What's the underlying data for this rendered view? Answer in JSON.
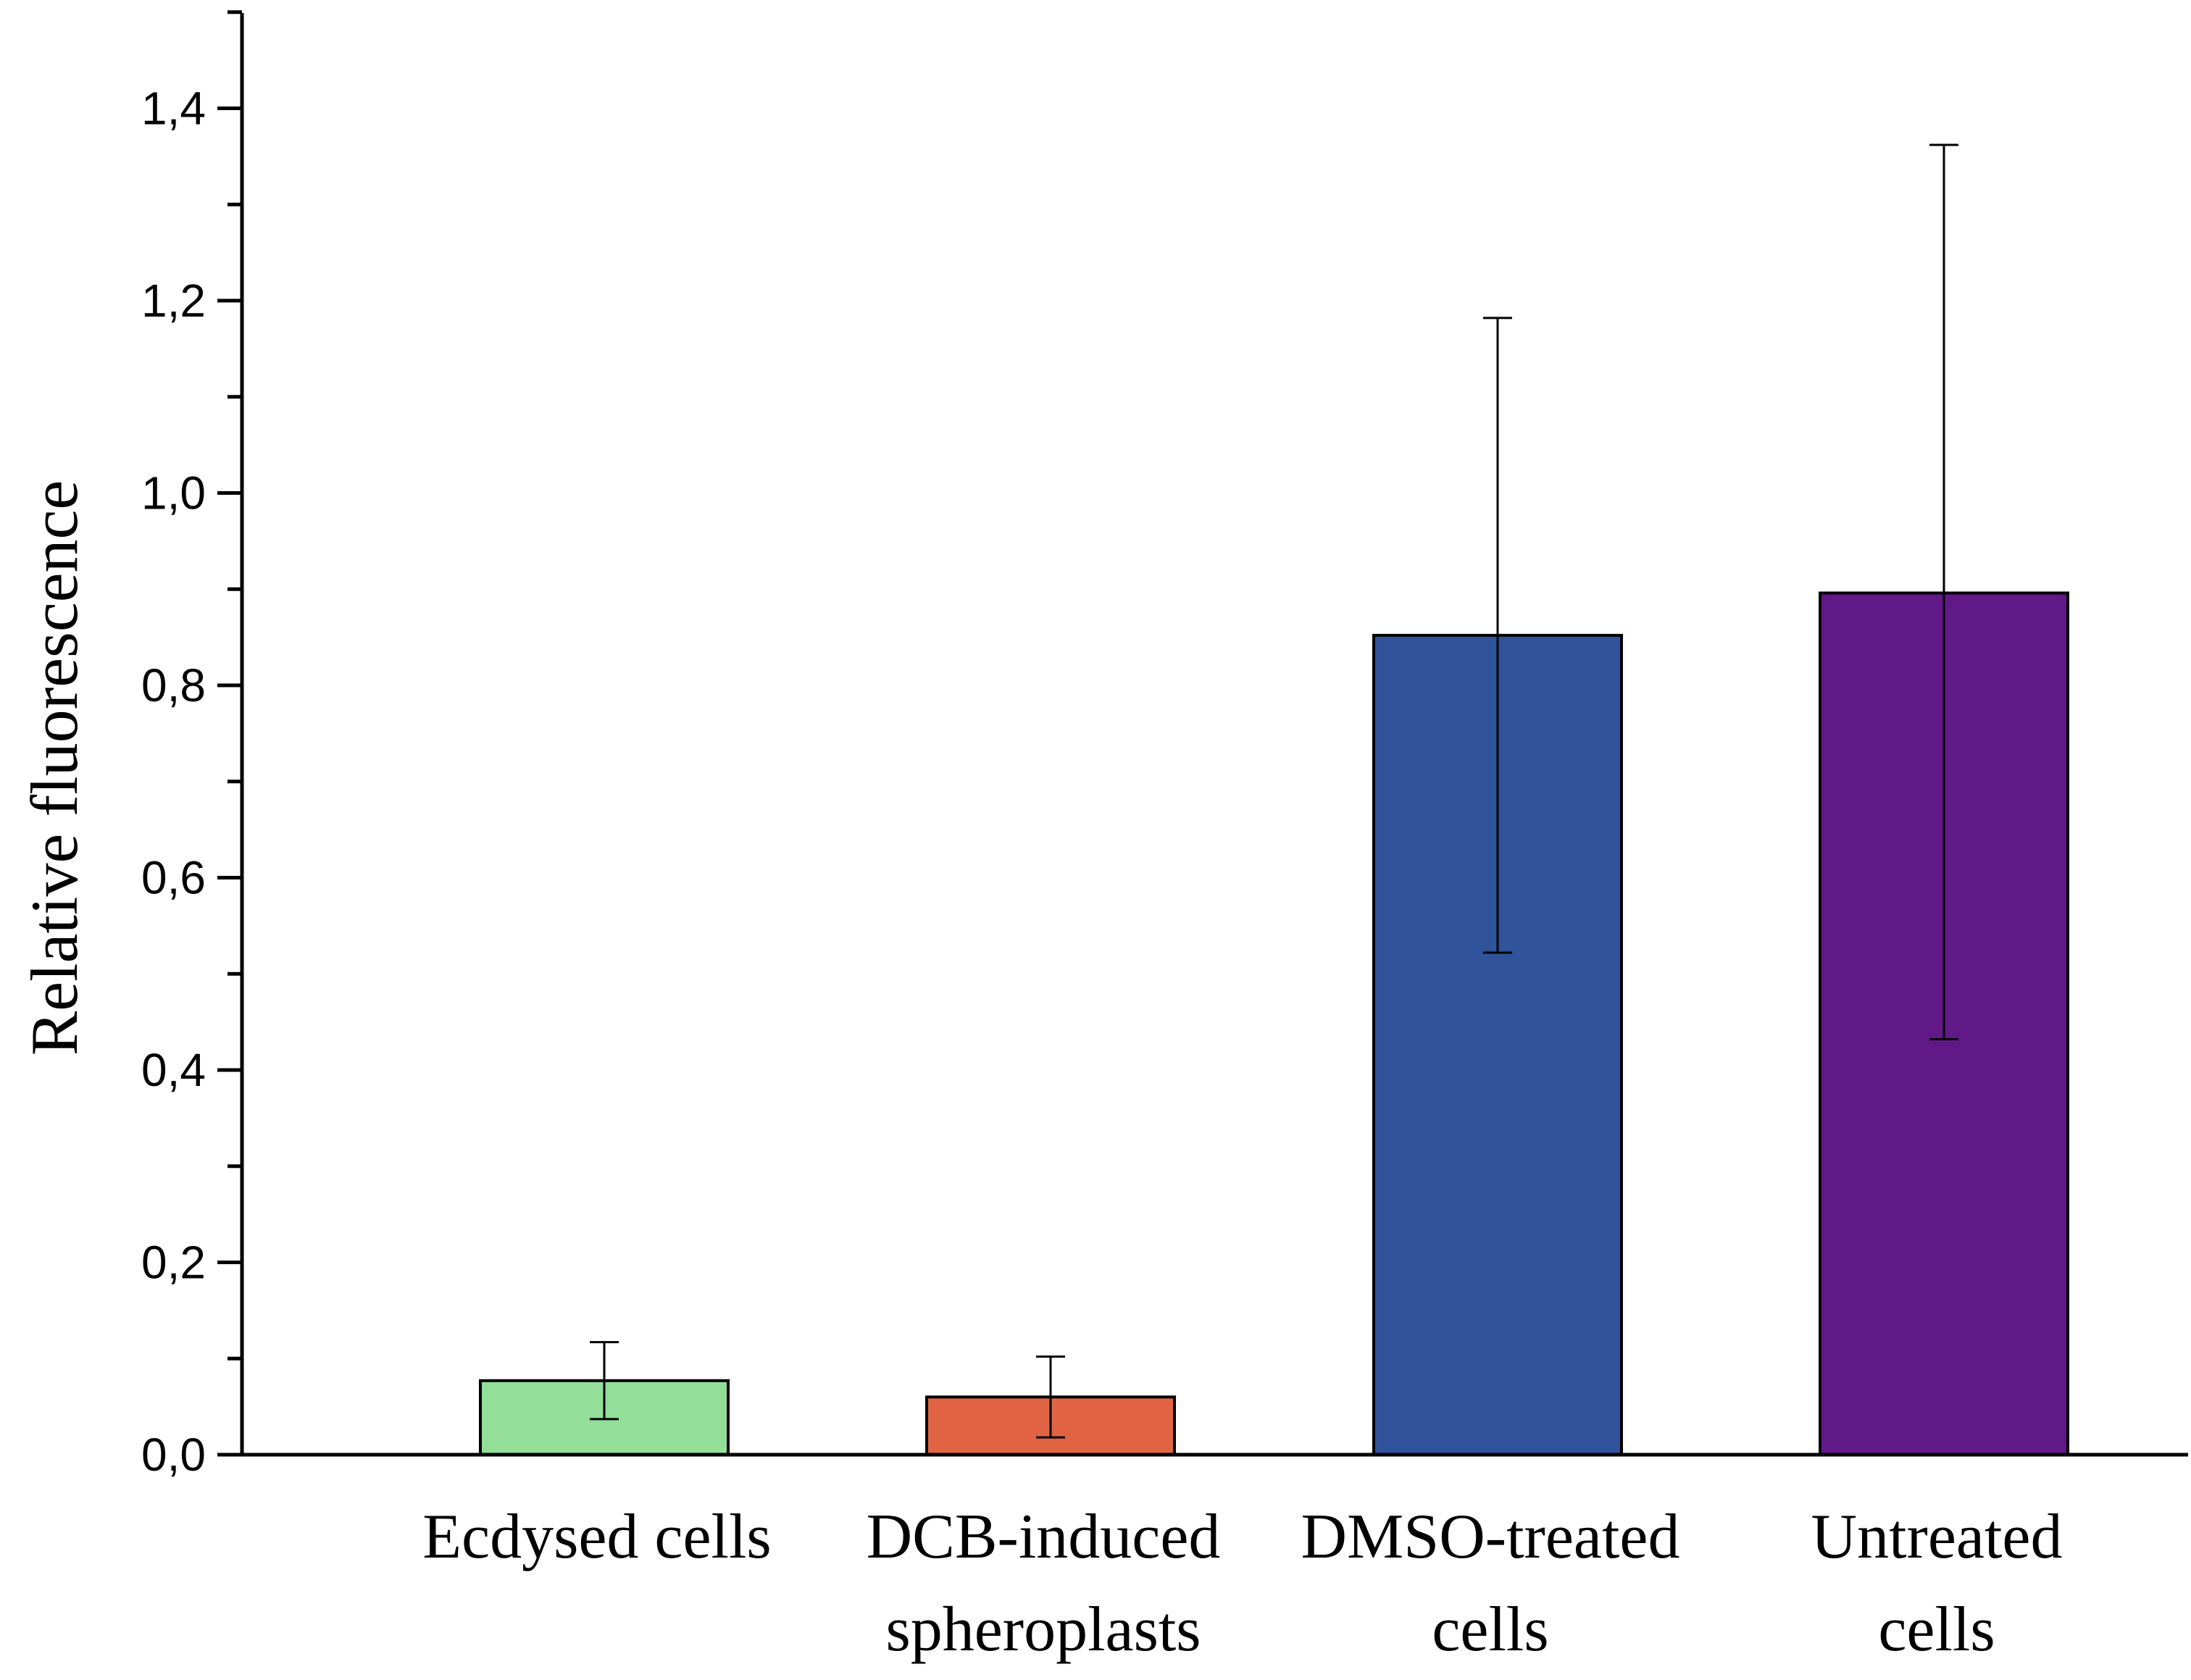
{
  "chart_data": {
    "type": "bar",
    "title": "",
    "xlabel": "",
    "ylabel": "Relative fluorescence",
    "ylim": [
      0,
      1.5
    ],
    "grid": false,
    "legend": "none",
    "y_ticks": [
      {
        "value": 0.0,
        "label": "0,0"
      },
      {
        "value": 0.2,
        "label": "0,2"
      },
      {
        "value": 0.4,
        "label": "0,4"
      },
      {
        "value": 0.6,
        "label": "0,6"
      },
      {
        "value": 0.8,
        "label": "0,8"
      },
      {
        "value": 1.0,
        "label": "1,0"
      },
      {
        "value": 1.2,
        "label": "1,2"
      },
      {
        "value": 1.4,
        "label": "1,4"
      }
    ],
    "y_minor_step": 0.1,
    "categories": [
      {
        "lines": [
          "Ecdysed cells"
        ]
      },
      {
        "lines": [
          "DCB-induced",
          "spheroplasts"
        ]
      },
      {
        "lines": [
          "DMSO-treated",
          "cells"
        ]
      },
      {
        "lines": [
          "Untreated",
          "cells"
        ]
      }
    ],
    "values": [
      0.077,
      0.06,
      0.852,
      0.896
    ],
    "error_low": [
      0.037,
      0.018,
      0.522,
      0.432
    ],
    "error_high": [
      0.117,
      0.102,
      1.182,
      1.362
    ],
    "colors": [
      "#93DE98",
      "#E06444",
      "#31539C",
      "#621988"
    ]
  }
}
